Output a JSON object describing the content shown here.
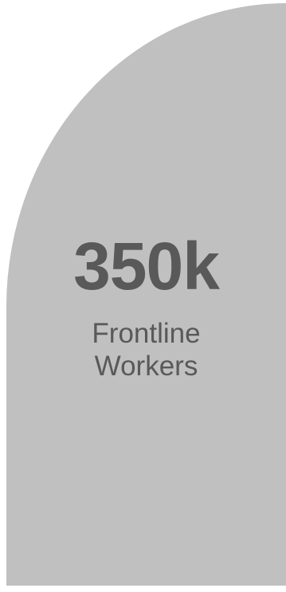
{
  "stat": {
    "value": "350k",
    "label_line1": "Frontline",
    "label_line2": "Workers"
  },
  "colors": {
    "card_background": "#c0c0c0",
    "text": "#595959",
    "page_background": "#ffffff"
  }
}
